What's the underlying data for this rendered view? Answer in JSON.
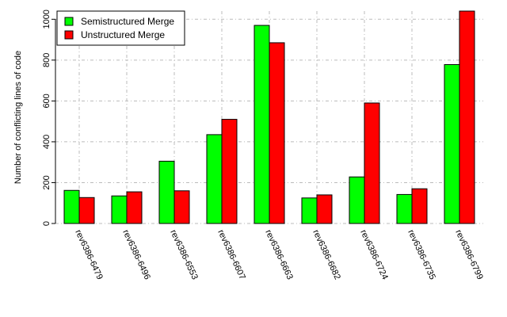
{
  "chart_data": {
    "type": "bar",
    "categories": [
      "rev6386-6479",
      "rev6386-6496",
      "rev6386-6553",
      "rev6386-6607",
      "rev6386-6663",
      "rev6386-6682",
      "rev6386-6724",
      "rev6386-6735",
      "rev6386-6799"
    ],
    "series": [
      {
        "name": "Semistructured Merge",
        "color": "#00ff00",
        "values": [
          162,
          135,
          305,
          435,
          970,
          125,
          228,
          142,
          778
        ]
      },
      {
        "name": "Unstructured Merge",
        "color": "#ff0000",
        "values": [
          127,
          155,
          160,
          510,
          885,
          140,
          590,
          170,
          1040
        ]
      }
    ],
    "title": "",
    "xlabel": "",
    "ylabel": "Number of conflicting lines of code",
    "ylim": [
      0,
      1040
    ],
    "yticks": [
      0,
      200,
      400,
      600,
      800,
      1000
    ],
    "grid": true,
    "legend_position": "top-left"
  }
}
